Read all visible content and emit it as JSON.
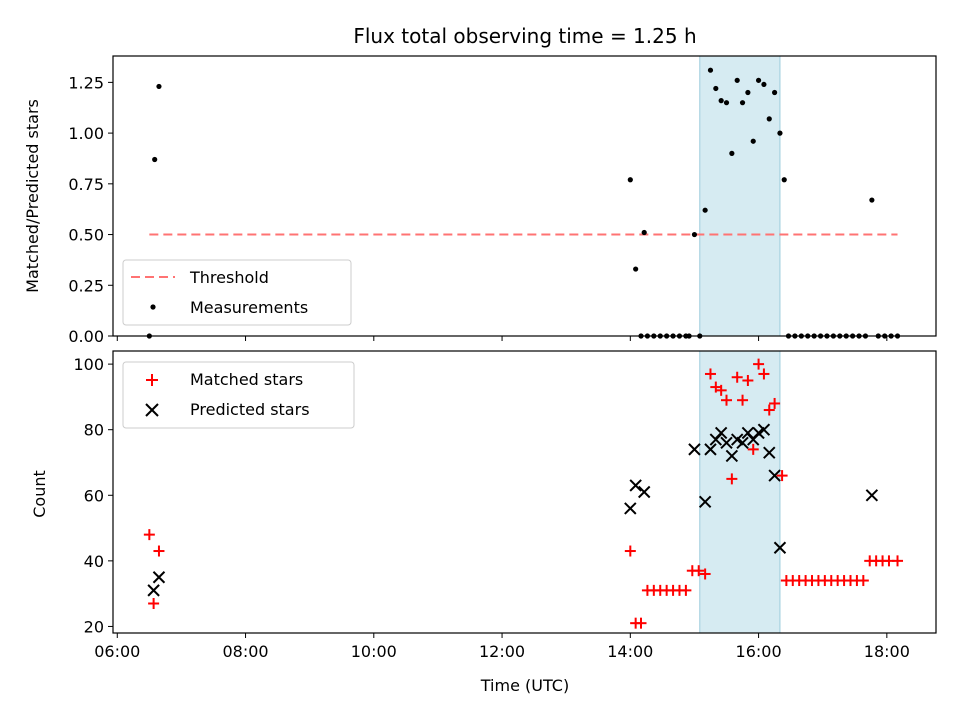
{
  "chart_data": [
    {
      "type": "scatter",
      "title": "Flux total observing time = 1.25 h",
      "ylabel": "Matched/Predicted stars",
      "xlabel": "",
      "xlim": [
        "05:56",
        "18:46"
      ],
      "ylim": [
        0,
        1.38
      ],
      "yticks": [
        "0.00",
        "0.25",
        "0.50",
        "0.75",
        "1.00",
        "1.25"
      ],
      "shaded_interval": [
        "15:05",
        "16:20"
      ],
      "threshold": {
        "name": "Threshold",
        "y": 0.5,
        "x_start": "06:30",
        "x_end": "18:10",
        "color": "#ff7373"
      },
      "series": [
        {
          "name": "Measurements",
          "color": "#000000",
          "points": [
            [
              "06:30",
              0.0
            ],
            [
              "06:35",
              0.87
            ],
            [
              "06:39",
              1.23
            ],
            [
              "14:00",
              0.77
            ],
            [
              "14:05",
              0.33
            ],
            [
              "14:10",
              0.0
            ],
            [
              "14:13",
              0.51
            ],
            [
              "14:16",
              0.0
            ],
            [
              "14:22",
              0.0
            ],
            [
              "14:28",
              0.0
            ],
            [
              "14:34",
              0.0
            ],
            [
              "14:40",
              0.0
            ],
            [
              "14:46",
              0.0
            ],
            [
              "14:52",
              0.0
            ],
            [
              "14:55",
              0.0
            ],
            [
              "15:00",
              0.5
            ],
            [
              "15:05",
              0.0
            ],
            [
              "15:10",
              0.62
            ],
            [
              "15:15",
              1.31
            ],
            [
              "15:20",
              1.22
            ],
            [
              "15:25",
              1.16
            ],
            [
              "15:30",
              1.15
            ],
            [
              "15:35",
              0.9
            ],
            [
              "15:40",
              1.26
            ],
            [
              "15:45",
              1.15
            ],
            [
              "15:50",
              1.2
            ],
            [
              "15:55",
              0.96
            ],
            [
              "16:00",
              1.26
            ],
            [
              "16:05",
              1.24
            ],
            [
              "16:10",
              1.07
            ],
            [
              "16:15",
              1.2
            ],
            [
              "16:20",
              1.0
            ],
            [
              "16:24",
              0.77
            ],
            [
              "16:28",
              0.0
            ],
            [
              "16:34",
              0.0
            ],
            [
              "16:40",
              0.0
            ],
            [
              "16:46",
              0.0
            ],
            [
              "16:52",
              0.0
            ],
            [
              "16:58",
              0.0
            ],
            [
              "17:04",
              0.0
            ],
            [
              "17:10",
              0.0
            ],
            [
              "17:16",
              0.0
            ],
            [
              "17:22",
              0.0
            ],
            [
              "17:28",
              0.0
            ],
            [
              "17:34",
              0.0
            ],
            [
              "17:40",
              0.0
            ],
            [
              "17:46",
              0.67
            ],
            [
              "17:52",
              0.0
            ],
            [
              "17:58",
              0.0
            ],
            [
              "18:04",
              0.0
            ],
            [
              "18:10",
              0.0
            ]
          ]
        }
      ],
      "legend": {
        "position": "lower-left",
        "entries": [
          "Threshold",
          "Measurements"
        ]
      }
    },
    {
      "type": "scatter",
      "title": "",
      "ylabel": "Count",
      "xlabel": "Time (UTC)",
      "xlim": [
        "05:56",
        "18:46"
      ],
      "ylim": [
        18,
        104
      ],
      "yticks": [
        "20",
        "40",
        "60",
        "80",
        "100"
      ],
      "xticks": [
        "06:00",
        "08:00",
        "10:00",
        "12:00",
        "14:00",
        "16:00",
        "18:00"
      ],
      "shaded_interval": [
        "15:05",
        "16:20"
      ],
      "series": [
        {
          "name": "Matched stars",
          "color": "#ff0000",
          "marker": "plus",
          "points": [
            [
              "06:30",
              48
            ],
            [
              "06:34",
              27
            ],
            [
              "06:39",
              43
            ],
            [
              "14:00",
              43
            ],
            [
              "14:05",
              21
            ],
            [
              "14:10",
              21
            ],
            [
              "14:16",
              31
            ],
            [
              "14:22",
              31
            ],
            [
              "14:28",
              31
            ],
            [
              "14:34",
              31
            ],
            [
              "14:40",
              31
            ],
            [
              "14:46",
              31
            ],
            [
              "14:52",
              31
            ],
            [
              "14:58",
              37
            ],
            [
              "15:04",
              37
            ],
            [
              "15:10",
              36
            ],
            [
              "15:15",
              97
            ],
            [
              "15:20",
              93
            ],
            [
              "15:25",
              92
            ],
            [
              "15:30",
              89
            ],
            [
              "15:35",
              65
            ],
            [
              "15:40",
              96
            ],
            [
              "15:45",
              89
            ],
            [
              "15:50",
              95
            ],
            [
              "15:55",
              74
            ],
            [
              "16:00",
              100
            ],
            [
              "16:05",
              97
            ],
            [
              "16:10",
              86
            ],
            [
              "16:15",
              88
            ],
            [
              "16:22",
              66
            ],
            [
              "16:26",
              34
            ],
            [
              "16:32",
              34
            ],
            [
              "16:38",
              34
            ],
            [
              "16:44",
              34
            ],
            [
              "16:50",
              34
            ],
            [
              "16:56",
              34
            ],
            [
              "17:02",
              34
            ],
            [
              "17:08",
              34
            ],
            [
              "17:14",
              34
            ],
            [
              "17:20",
              34
            ],
            [
              "17:26",
              34
            ],
            [
              "17:32",
              34
            ],
            [
              "17:38",
              34
            ],
            [
              "17:44",
              40
            ],
            [
              "17:50",
              40
            ],
            [
              "17:56",
              40
            ],
            [
              "18:02",
              40
            ],
            [
              "18:10",
              40
            ]
          ]
        },
        {
          "name": "Predicted stars",
          "color": "#000000",
          "marker": "cross",
          "points": [
            [
              "06:34",
              31
            ],
            [
              "06:39",
              35
            ],
            [
              "14:00",
              56
            ],
            [
              "14:05",
              63
            ],
            [
              "14:13",
              61
            ],
            [
              "15:00",
              74
            ],
            [
              "15:10",
              58
            ],
            [
              "15:15",
              74
            ],
            [
              "15:20",
              77
            ],
            [
              "15:25",
              79
            ],
            [
              "15:30",
              76
            ],
            [
              "15:35",
              72
            ],
            [
              "15:40",
              77
            ],
            [
              "15:45",
              76
            ],
            [
              "15:50",
              79
            ],
            [
              "15:55",
              77
            ],
            [
              "16:00",
              79
            ],
            [
              "16:05",
              80
            ],
            [
              "16:10",
              73
            ],
            [
              "16:15",
              66
            ],
            [
              "16:20",
              44
            ],
            [
              "17:46",
              60
            ]
          ]
        }
      ],
      "legend": {
        "position": "upper-left",
        "entries": [
          "Matched stars",
          "Predicted stars"
        ]
      }
    }
  ]
}
